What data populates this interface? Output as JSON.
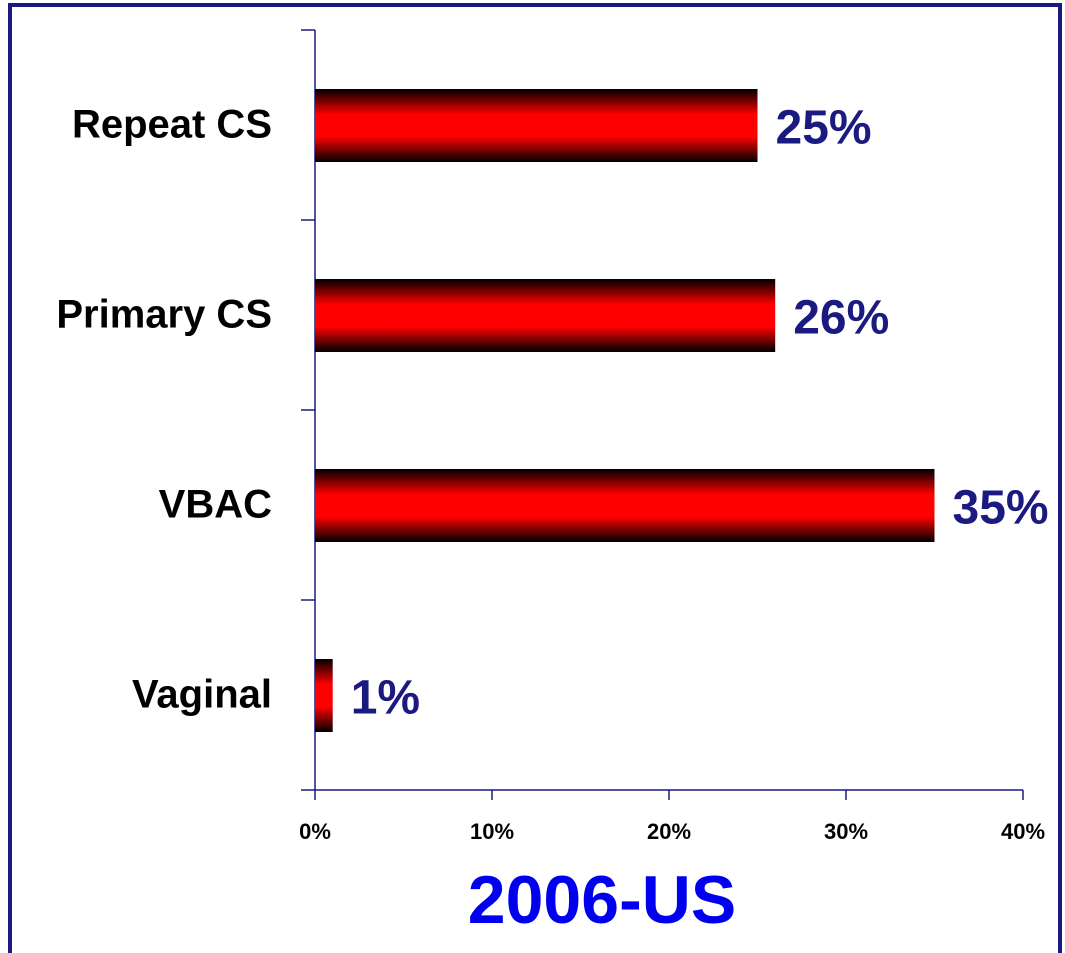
{
  "chart_data": {
    "type": "barh",
    "title": "2006-US",
    "categories": [
      "Repeat CS",
      "Primary CS",
      "VBAC",
      "Vaginal"
    ],
    "values": [
      25,
      26,
      35,
      1
    ],
    "value_labels": [
      "25%",
      "26%",
      "35%",
      "1%"
    ],
    "color": "#ff0000",
    "xlim": [
      0,
      40
    ],
    "xticks": [
      {
        "value": 0,
        "label": "0%"
      },
      {
        "value": 10,
        "label": "10%"
      },
      {
        "value": 20,
        "label": "20%"
      },
      {
        "value": 30,
        "label": "30%"
      },
      {
        "value": 40,
        "label": "40%"
      }
    ],
    "grid": false
  }
}
